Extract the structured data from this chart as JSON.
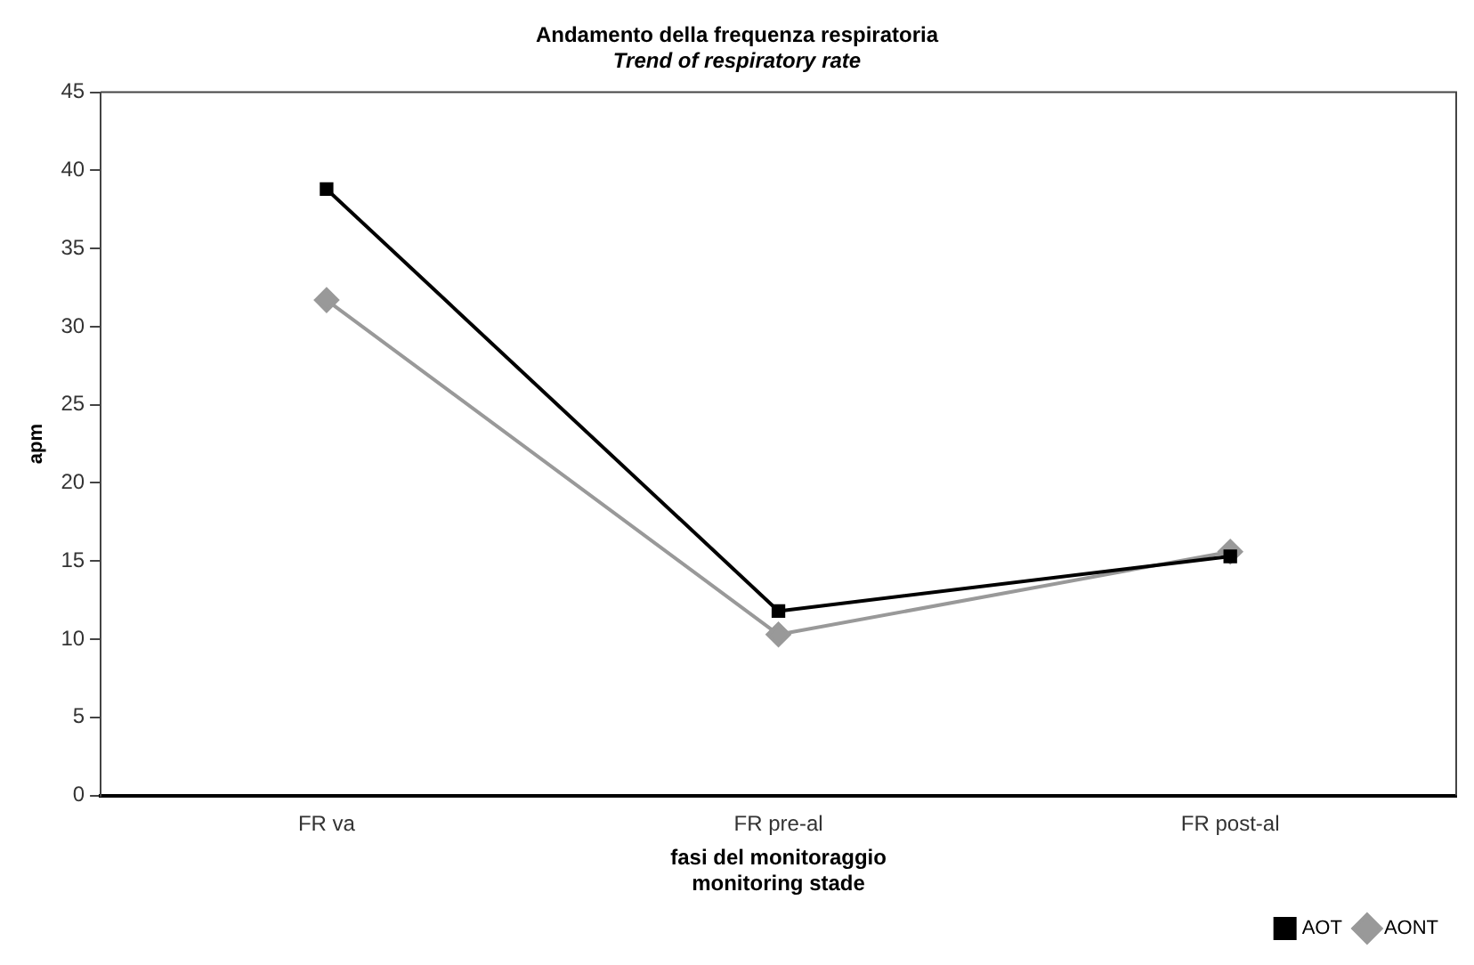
{
  "chart_data": {
    "type": "line",
    "title": "Andamento della frequenza respiratoria",
    "subtitle": "Trend of respiratory rate",
    "xlabel": "fasi del monitoraggio\nmonitoring stade",
    "ylabel": "apm",
    "categories": [
      "FR va",
      "FR pre-al",
      "FR post-al"
    ],
    "series": [
      {
        "name": "AOT",
        "color": "#000000",
        "marker": "square",
        "values": [
          38.8,
          11.8,
          15.3
        ]
      },
      {
        "name": "AONT",
        "color": "#999999",
        "marker": "diamond",
        "values": [
          31.7,
          10.3,
          15.6
        ]
      }
    ],
    "ylim": [
      0,
      45
    ],
    "yticks": [
      0,
      5,
      10,
      15,
      20,
      25,
      30,
      35,
      40,
      45
    ],
    "grid": false,
    "legend": "bottom right",
    "line_style": "solid"
  }
}
